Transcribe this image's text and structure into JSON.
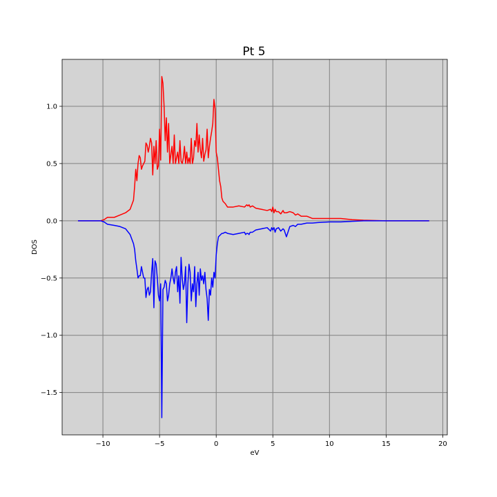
{
  "chart_data": {
    "type": "line",
    "title": "Pt 5",
    "xlabel": "eV",
    "ylabel": "DOS",
    "xlim": [
      -13.6,
      20.4
    ],
    "ylim": [
      -1.87,
      1.41
    ],
    "xticks": [
      -10,
      -5,
      0,
      5,
      10,
      15,
      20
    ],
    "xtick_labels": [
      "−10",
      "−5",
      "0",
      "5",
      "10",
      "15",
      "20"
    ],
    "yticks": [
      -1.5,
      -1.0,
      -0.5,
      0.0,
      0.5,
      1.0
    ],
    "ytick_labels": [
      "−1.5",
      "−1.0",
      "−0.5",
      "0.0",
      "0.5",
      "1.0"
    ],
    "grid": true,
    "background_color": "#d3d3d3",
    "series": [
      {
        "color": "#ff0000",
        "x": [
          -12.2,
          -11.0,
          -10.2,
          -9.9,
          -9.6,
          -9.0,
          -8.5,
          -8.0,
          -7.6,
          -7.3,
          -7.2,
          -7.1,
          -7.0,
          -6.9,
          -6.8,
          -6.7,
          -6.6,
          -6.5,
          -6.4,
          -6.3,
          -6.2,
          -6.1,
          -6.0,
          -5.9,
          -5.8,
          -5.7,
          -5.6,
          -5.5,
          -5.4,
          -5.3,
          -5.2,
          -5.1,
          -5.0,
          -4.9,
          -4.8,
          -4.7,
          -4.6,
          -4.5,
          -4.4,
          -4.3,
          -4.2,
          -4.1,
          -4.0,
          -3.9,
          -3.8,
          -3.7,
          -3.6,
          -3.5,
          -3.4,
          -3.3,
          -3.2,
          -3.1,
          -3.0,
          -2.9,
          -2.8,
          -2.7,
          -2.6,
          -2.5,
          -2.4,
          -2.3,
          -2.2,
          -2.1,
          -2.0,
          -1.9,
          -1.8,
          -1.7,
          -1.6,
          -1.5,
          -1.4,
          -1.3,
          -1.2,
          -1.1,
          -1.0,
          -0.9,
          -0.8,
          -0.7,
          -0.6,
          -0.5,
          -0.4,
          -0.3,
          -0.2,
          -0.1,
          0.0,
          0.1,
          0.2,
          0.3,
          0.4,
          0.5,
          0.6,
          0.8,
          1.0,
          1.5,
          2.0,
          2.5,
          2.6,
          2.7,
          2.8,
          2.9,
          3.0,
          3.2,
          3.5,
          4.0,
          4.5,
          4.8,
          4.9,
          5.0,
          5.1,
          5.2,
          5.3,
          5.5,
          5.7,
          5.9,
          6.0,
          6.2,
          6.5,
          6.8,
          7.0,
          7.2,
          7.5,
          8.0,
          8.5,
          9.0,
          10.0,
          11.0,
          12.0,
          13.0,
          15.0,
          17.0,
          18.8
        ],
        "y": [
          0.0,
          0.0,
          0.0,
          0.01,
          0.03,
          0.03,
          0.05,
          0.07,
          0.1,
          0.18,
          0.3,
          0.45,
          0.35,
          0.5,
          0.57,
          0.55,
          0.45,
          0.48,
          0.5,
          0.52,
          0.68,
          0.66,
          0.6,
          0.65,
          0.72,
          0.68,
          0.4,
          0.65,
          0.5,
          0.7,
          0.45,
          0.48,
          0.8,
          0.53,
          1.26,
          1.2,
          1.0,
          0.7,
          0.9,
          0.6,
          0.85,
          0.5,
          0.58,
          0.65,
          0.5,
          0.75,
          0.5,
          0.55,
          0.6,
          0.5,
          0.7,
          0.52,
          0.5,
          0.55,
          0.65,
          0.5,
          0.6,
          0.5,
          0.55,
          0.5,
          0.72,
          0.5,
          0.55,
          0.7,
          0.65,
          0.85,
          0.6,
          0.75,
          0.62,
          0.55,
          0.72,
          0.52,
          0.58,
          0.62,
          0.8,
          0.55,
          0.65,
          0.72,
          0.78,
          0.85,
          1.06,
          0.98,
          0.6,
          0.55,
          0.45,
          0.35,
          0.3,
          0.2,
          0.17,
          0.15,
          0.12,
          0.12,
          0.13,
          0.12,
          0.13,
          0.14,
          0.13,
          0.14,
          0.12,
          0.13,
          0.11,
          0.1,
          0.09,
          0.1,
          0.08,
          0.12,
          0.07,
          0.1,
          0.08,
          0.08,
          0.06,
          0.09,
          0.07,
          0.07,
          0.08,
          0.07,
          0.05,
          0.06,
          0.04,
          0.04,
          0.02,
          0.02,
          0.02,
          0.02,
          0.01,
          0.005,
          0.0,
          0.0,
          0.0
        ]
      },
      {
        "color": "#0000ff",
        "x": [
          -12.2,
          -11.0,
          -10.2,
          -9.9,
          -9.6,
          -9.0,
          -8.5,
          -8.0,
          -7.6,
          -7.3,
          -7.2,
          -7.1,
          -7.0,
          -6.9,
          -6.8,
          -6.7,
          -6.6,
          -6.5,
          -6.4,
          -6.3,
          -6.2,
          -6.1,
          -6.0,
          -5.9,
          -5.8,
          -5.7,
          -5.6,
          -5.5,
          -5.4,
          -5.3,
          -5.2,
          -5.1,
          -5.0,
          -4.9,
          -4.8,
          -4.7,
          -4.6,
          -4.5,
          -4.4,
          -4.3,
          -4.2,
          -4.1,
          -4.0,
          -3.9,
          -3.8,
          -3.7,
          -3.6,
          -3.5,
          -3.4,
          -3.3,
          -3.2,
          -3.1,
          -3.0,
          -2.9,
          -2.8,
          -2.7,
          -2.6,
          -2.5,
          -2.4,
          -2.3,
          -2.2,
          -2.1,
          -2.0,
          -1.9,
          -1.8,
          -1.7,
          -1.6,
          -1.5,
          -1.4,
          -1.3,
          -1.2,
          -1.1,
          -1.0,
          -0.9,
          -0.8,
          -0.7,
          -0.6,
          -0.5,
          -0.4,
          -0.3,
          -0.2,
          -0.1,
          0.0,
          0.1,
          0.2,
          0.3,
          0.4,
          0.5,
          0.6,
          0.8,
          1.0,
          1.5,
          2.0,
          2.5,
          2.6,
          2.7,
          2.8,
          2.9,
          3.0,
          3.2,
          3.5,
          4.0,
          4.5,
          4.8,
          4.9,
          5.0,
          5.1,
          5.2,
          5.3,
          5.5,
          5.7,
          5.9,
          6.0,
          6.2,
          6.5,
          6.8,
          7.0,
          7.2,
          7.5,
          8.0,
          8.5,
          9.0,
          10.0,
          11.0,
          12.0,
          13.0,
          15.0,
          17.0,
          18.8
        ],
        "y": [
          0.0,
          0.0,
          0.0,
          -0.01,
          -0.03,
          -0.04,
          -0.05,
          -0.07,
          -0.12,
          -0.2,
          -0.25,
          -0.35,
          -0.42,
          -0.5,
          -0.48,
          -0.48,
          -0.4,
          -0.45,
          -0.5,
          -0.5,
          -0.67,
          -0.6,
          -0.58,
          -0.65,
          -0.62,
          -0.45,
          -0.33,
          -0.76,
          -0.35,
          -0.38,
          -0.5,
          -0.65,
          -0.7,
          -0.55,
          -1.72,
          -0.6,
          -0.58,
          -0.52,
          -0.55,
          -0.7,
          -0.65,
          -0.55,
          -0.5,
          -0.42,
          -0.5,
          -0.55,
          -0.45,
          -0.4,
          -0.62,
          -0.48,
          -0.72,
          -0.32,
          -0.5,
          -0.6,
          -0.55,
          -0.4,
          -0.89,
          -0.55,
          -0.38,
          -0.45,
          -0.7,
          -0.55,
          -0.62,
          -0.4,
          -0.75,
          -0.55,
          -0.45,
          -0.65,
          -0.42,
          -0.52,
          -0.48,
          -0.55,
          -0.45,
          -0.6,
          -0.68,
          -0.87,
          -0.6,
          -0.65,
          -0.5,
          -0.58,
          -0.45,
          -0.5,
          -0.3,
          -0.2,
          -0.14,
          -0.13,
          -0.12,
          -0.11,
          -0.11,
          -0.1,
          -0.11,
          -0.12,
          -0.11,
          -0.1,
          -0.12,
          -0.11,
          -0.11,
          -0.12,
          -0.1,
          -0.1,
          -0.08,
          -0.07,
          -0.06,
          -0.09,
          -0.06,
          -0.08,
          -0.06,
          -0.1,
          -0.07,
          -0.06,
          -0.09,
          -0.07,
          -0.08,
          -0.14,
          -0.05,
          -0.04,
          -0.05,
          -0.03,
          -0.03,
          -0.02,
          -0.02,
          -0.015,
          -0.01,
          -0.01,
          -0.005,
          0.0,
          0.0,
          0.0,
          0.0
        ]
      }
    ]
  }
}
